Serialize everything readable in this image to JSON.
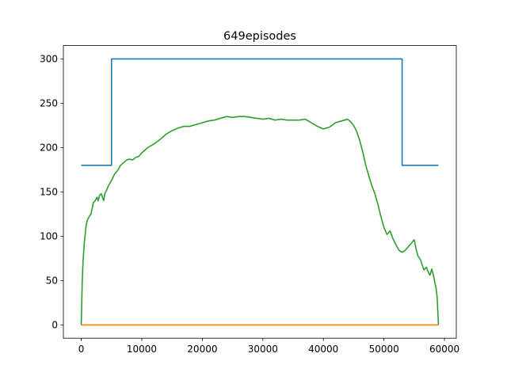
{
  "chart_data": {
    "type": "line",
    "title": "649episodes",
    "xlabel": "",
    "ylabel": "",
    "xlim": [
      -2950,
      61950
    ],
    "ylim": [
      -15,
      315
    ],
    "x_ticks": [
      0,
      10000,
      20000,
      30000,
      40000,
      50000,
      60000
    ],
    "y_ticks": [
      0,
      50,
      100,
      150,
      200,
      250,
      300
    ],
    "grid": false,
    "legend": "none",
    "series": [
      {
        "color": "#1f77b4",
        "points": [
          [
            0,
            180
          ],
          [
            5000,
            180
          ],
          [
            5000,
            300
          ],
          [
            53000,
            300
          ],
          [
            53000,
            180
          ],
          [
            59000,
            180
          ]
        ]
      },
      {
        "color": "#ff7f0e",
        "points": [
          [
            0,
            0
          ],
          [
            59000,
            0
          ]
        ]
      },
      {
        "color": "#2ca02c",
        "points": [
          [
            0,
            0
          ],
          [
            150,
            45
          ],
          [
            300,
            72
          ],
          [
            500,
            92
          ],
          [
            800,
            112
          ],
          [
            1000,
            118
          ],
          [
            1300,
            122
          ],
          [
            1600,
            125
          ],
          [
            2000,
            138
          ],
          [
            2300,
            140
          ],
          [
            2600,
            144
          ],
          [
            2800,
            140
          ],
          [
            3000,
            146
          ],
          [
            3300,
            148
          ],
          [
            3500,
            144
          ],
          [
            3700,
            140
          ],
          [
            3900,
            148
          ],
          [
            4200,
            152
          ],
          [
            4500,
            157
          ],
          [
            5000,
            163
          ],
          [
            5500,
            170
          ],
          [
            6000,
            174
          ],
          [
            6500,
            180
          ],
          [
            7000,
            183
          ],
          [
            7500,
            186
          ],
          [
            8000,
            187
          ],
          [
            8500,
            186
          ],
          [
            9000,
            189
          ],
          [
            9500,
            190
          ],
          [
            10000,
            194
          ],
          [
            11000,
            200
          ],
          [
            12000,
            204
          ],
          [
            13000,
            209
          ],
          [
            14000,
            215
          ],
          [
            15000,
            219
          ],
          [
            16000,
            222
          ],
          [
            17000,
            224
          ],
          [
            18000,
            224
          ],
          [
            19000,
            226
          ],
          [
            20000,
            228
          ],
          [
            21000,
            230
          ],
          [
            22000,
            231
          ],
          [
            23000,
            233
          ],
          [
            24000,
            235
          ],
          [
            25000,
            234
          ],
          [
            26000,
            235
          ],
          [
            27000,
            235
          ],
          [
            28000,
            234
          ],
          [
            29000,
            233
          ],
          [
            30000,
            232
          ],
          [
            31000,
            233
          ],
          [
            32000,
            231
          ],
          [
            33000,
            232
          ],
          [
            34000,
            231
          ],
          [
            35000,
            231
          ],
          [
            36000,
            231
          ],
          [
            37000,
            232
          ],
          [
            38000,
            228
          ],
          [
            39000,
            224
          ],
          [
            40000,
            221
          ],
          [
            41000,
            223
          ],
          [
            42000,
            228
          ],
          [
            43000,
            230
          ],
          [
            44000,
            232
          ],
          [
            44500,
            229
          ],
          [
            45000,
            225
          ],
          [
            45500,
            218
          ],
          [
            46000,
            208
          ],
          [
            46500,
            195
          ],
          [
            47000,
            180
          ],
          [
            47500,
            168
          ],
          [
            48000,
            157
          ],
          [
            48500,
            148
          ],
          [
            49000,
            136
          ],
          [
            49500,
            122
          ],
          [
            50000,
            110
          ],
          [
            50500,
            102
          ],
          [
            51000,
            106
          ],
          [
            51500,
            97
          ],
          [
            52000,
            90
          ],
          [
            52500,
            84
          ],
          [
            53000,
            82
          ],
          [
            53500,
            84
          ],
          [
            54000,
            88
          ],
          [
            54500,
            92
          ],
          [
            55000,
            96
          ],
          [
            55300,
            86
          ],
          [
            55600,
            78
          ],
          [
            56000,
            74
          ],
          [
            56300,
            68
          ],
          [
            56600,
            62
          ],
          [
            57000,
            65
          ],
          [
            57300,
            60
          ],
          [
            57600,
            56
          ],
          [
            57900,
            63
          ],
          [
            58200,
            55
          ],
          [
            58400,
            48
          ],
          [
            58600,
            42
          ],
          [
            58800,
            30
          ],
          [
            59000,
            0
          ]
        ]
      }
    ]
  }
}
